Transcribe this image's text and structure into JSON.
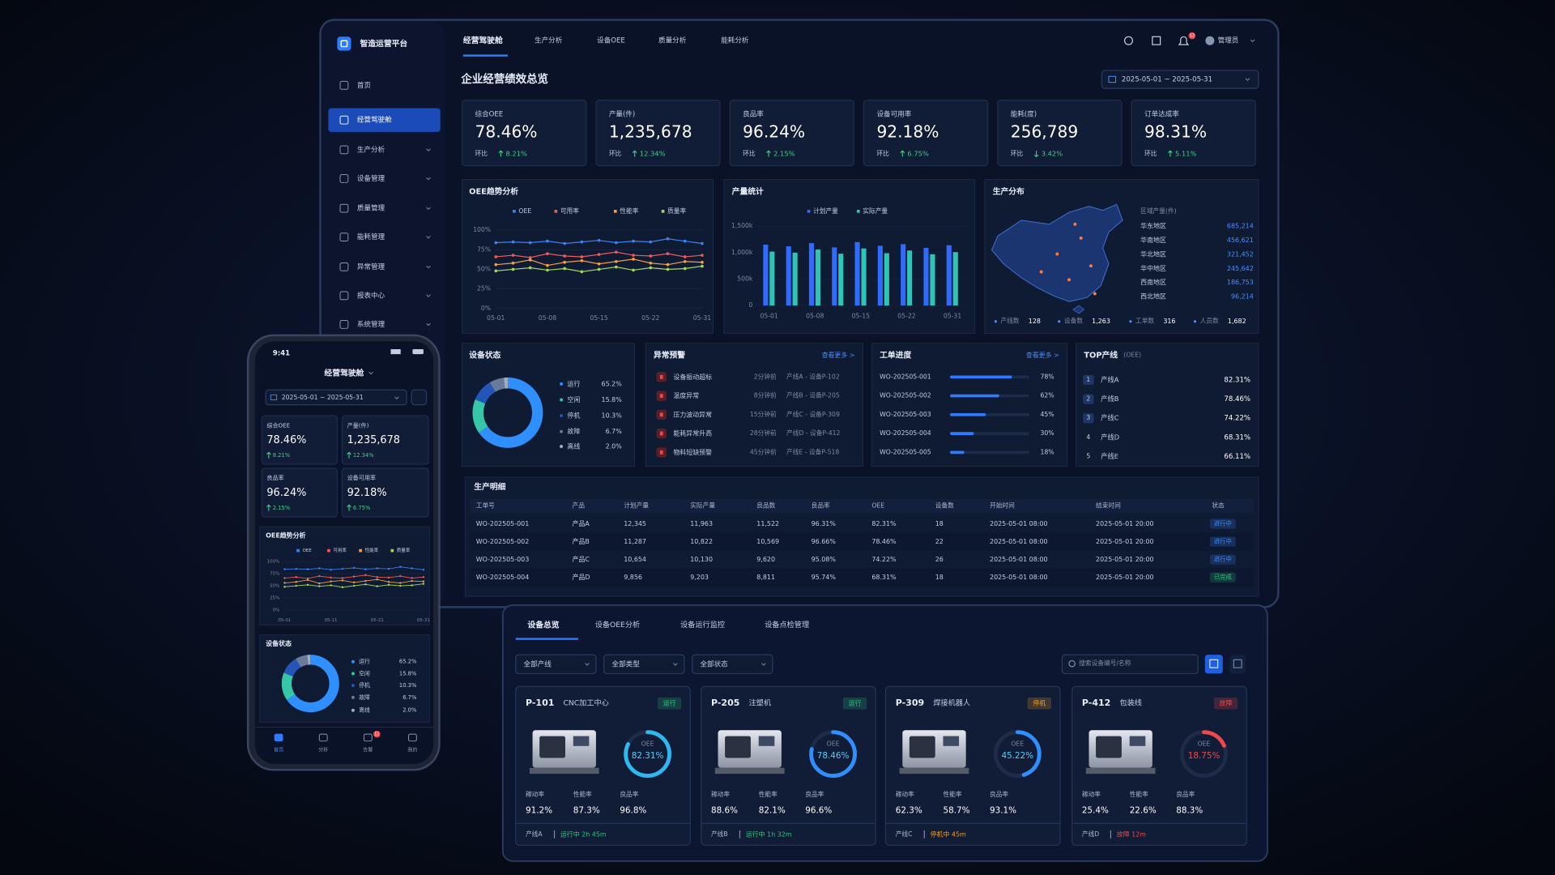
{
  "app": {
    "name": "智造运营平台",
    "tabs": [
      "经营驾驶舱",
      "生产分析",
      "设备OEE",
      "质量分析",
      "能耗分析"
    ],
    "active_tab": 0,
    "user": "管理员",
    "notice_count": "12"
  },
  "sidebar": {
    "items": [
      "首页",
      "经营驾驶舱",
      "生产分析",
      "设备管理",
      "质量管理",
      "能耗管理",
      "异常管理",
      "报表中心",
      "系统管理"
    ],
    "active": 1
  },
  "dashboard": {
    "title": "企业经营绩效总览",
    "date_range": "2025-05-01 ~ 2025-05-31",
    "change_label": "环比",
    "kpis": [
      {
        "label": "综合OEE",
        "value": "78.46%",
        "change": "8.21%",
        "trend": "up"
      },
      {
        "label": "产量(件)",
        "value": "1,235,678",
        "change": "12.34%",
        "trend": "up"
      },
      {
        "label": "良品率",
        "value": "96.24%",
        "change": "2.15%",
        "trend": "up"
      },
      {
        "label": "设备可用率",
        "value": "92.18%",
        "change": "6.75%",
        "trend": "up"
      },
      {
        "label": "能耗(度)",
        "value": "256,789",
        "change": "3.42%",
        "trend": "down"
      },
      {
        "label": "订单达成率",
        "value": "98.31%",
        "change": "5.11%",
        "trend": "up"
      }
    ],
    "oee_trend": {
      "type": "line",
      "title": "OEE趋势分析",
      "categories": [
        "05-01",
        null,
        null,
        "05-08",
        null,
        null,
        "05-15",
        null,
        null,
        "05-22",
        null,
        null,
        "05-31"
      ],
      "ylim": [
        0,
        100
      ],
      "yticks": [
        {
          "value": 0,
          "label": "0%"
        },
        {
          "value": 25,
          "label": "25%"
        },
        {
          "value": 50,
          "label": "50%"
        },
        {
          "value": 75,
          "label": "75%"
        },
        {
          "value": 100,
          "label": "100%"
        }
      ],
      "series": [
        {
          "name": "OEE",
          "color": "#3b82f6",
          "values": [
            84,
            85,
            84,
            86,
            83,
            85,
            87,
            84,
            86,
            85,
            89,
            86,
            83
          ]
        },
        {
          "name": "可用率",
          "color": "#ef5b5b",
          "values": [
            66,
            68,
            65,
            70,
            67,
            66,
            69,
            72,
            68,
            67,
            70,
            66,
            68
          ]
        },
        {
          "name": "性能率",
          "color": "#f59e42",
          "values": [
            56,
            58,
            62,
            55,
            59,
            61,
            57,
            60,
            63,
            58,
            56,
            60,
            59
          ]
        },
        {
          "name": "质量率",
          "color": "#a3d65c",
          "values": [
            48,
            50,
            52,
            49,
            51,
            47,
            50,
            53,
            49,
            52,
            50,
            51,
            54
          ]
        }
      ]
    },
    "output": {
      "type": "bar",
      "title": "产量统计",
      "categories": [
        "05-01",
        null,
        "05-08",
        null,
        "05-15",
        null,
        "05-22",
        null,
        "05-31"
      ],
      "ylim": [
        0,
        1600
      ],
      "yticks": [
        0,
        {
          "value": 500,
          "label": "500k"
        },
        {
          "value": 1000,
          "label": "1,000k"
        },
        {
          "value": 1500,
          "label": "1,500k"
        }
      ],
      "series": [
        {
          "name": "计划产量",
          "color": "#2f6bff",
          "values": [
            1150,
            1120,
            1180,
            1100,
            1200,
            1130,
            1160,
            1090,
            1140
          ]
        },
        {
          "name": "实际产量",
          "color": "#2ec4b6",
          "values": [
            1020,
            1000,
            1060,
            980,
            1080,
            990,
            1040,
            970,
            1010
          ]
        }
      ]
    },
    "distribution": {
      "title": "生产分布",
      "list_title": "区域产量(件)",
      "regions": [
        {
          "name": "华东地区",
          "value": "685,214"
        },
        {
          "name": "华南地区",
          "value": "456,621"
        },
        {
          "name": "华北地区",
          "value": "321,452"
        },
        {
          "name": "华中地区",
          "value": "245,642"
        },
        {
          "name": "西南地区",
          "value": "186,753"
        },
        {
          "name": "西北地区",
          "value": "96,214"
        }
      ],
      "stats": [
        {
          "label": "产线数",
          "value": "128"
        },
        {
          "label": "设备数",
          "value": "1,263"
        },
        {
          "label": "工单数",
          "value": "316"
        },
        {
          "label": "人员数",
          "value": "1,682"
        }
      ]
    },
    "device_status": {
      "type": "pie",
      "title": "设备状态",
      "categories": [
        "运行",
        "空闲",
        "停机",
        "故障",
        "离线"
      ],
      "values": [
        65.2,
        15.8,
        10.3,
        6.7,
        2.0
      ],
      "value_labels": [
        "65.2%",
        "15.8%",
        "10.3%",
        "6.7%",
        "2.0%"
      ],
      "colors": [
        "#2f8fff",
        "#36c6a8",
        "#2455b8",
        "#6b7a99",
        "#a0aec0"
      ]
    },
    "alarms": {
      "title": "异常预警",
      "more": "查看更多 >",
      "items": [
        {
          "name": "设备振动超标",
          "time": "2分钟前",
          "source": "产线A - 设备P-102"
        },
        {
          "name": "温度异常",
          "time": "8分钟前",
          "source": "产线B - 设备P-205"
        },
        {
          "name": "压力波动异常",
          "time": "15分钟前",
          "source": "产线C - 设备P-309"
        },
        {
          "name": "能耗异常升高",
          "time": "28分钟前",
          "source": "产线D - 设备P-412"
        },
        {
          "name": "物料短缺预警",
          "time": "45分钟前",
          "source": "产线E - 设备P-518"
        }
      ]
    },
    "work_orders": {
      "title": "工单进度",
      "more": "查看更多 >",
      "items": [
        {
          "id": "WO-202505-001",
          "progress": {
            "value": 78,
            "label": "78%"
          }
        },
        {
          "id": "WO-202505-002",
          "progress": {
            "value": 62,
            "label": "62%"
          }
        },
        {
          "id": "WO-202505-003",
          "progress": {
            "value": 45,
            "label": "45%"
          }
        },
        {
          "id": "WO-202505-004",
          "progress": {
            "value": 30,
            "label": "30%"
          }
        },
        {
          "id": "WO-202505-005",
          "progress": {
            "value": 18,
            "label": "18%"
          }
        }
      ]
    },
    "top_lines": {
      "title": "TOP产线",
      "subtitle": "(OEE)",
      "items": [
        {
          "rank": "1",
          "name": "产线A",
          "value": "82.31%"
        },
        {
          "rank": "2",
          "name": "产线B",
          "value": "78.46%"
        },
        {
          "rank": "3",
          "name": "产线C",
          "value": "74.22%"
        },
        {
          "rank": "4",
          "name": "产线D",
          "value": "68.31%"
        },
        {
          "rank": "5",
          "name": "产线E",
          "value": "66.11%"
        }
      ]
    },
    "detail": {
      "title": "生产明细",
      "columns": [
        "工单号",
        "产品",
        "计划产量",
        "实际产量",
        "良品数",
        "良品率",
        "OEE",
        "设备数",
        "开始时间",
        "结束时间",
        "状态"
      ],
      "rows": [
        [
          "WO-202505-001",
          "产品A",
          "12,345",
          "11,963",
          "11,522",
          "96.31%",
          "82.31%",
          "18",
          "2025-05-01 08:00",
          "2025-05-01 20:00",
          "进行中"
        ],
        [
          "WO-202505-002",
          "产品B",
          "11,287",
          "10,822",
          "10,569",
          "96.66%",
          "78.46%",
          "22",
          "2025-05-01 08:00",
          "2025-05-01 20:00",
          "进行中"
        ],
        [
          "WO-202505-003",
          "产品C",
          "10,654",
          "10,130",
          "9,620",
          "95.08%",
          "74.22%",
          "26",
          "2025-05-01 08:00",
          "2025-05-01 20:00",
          "进行中"
        ],
        [
          "WO-202505-004",
          "产品D",
          "9,856",
          "9,203",
          "8,811",
          "95.74%",
          "68.31%",
          "18",
          "2025-05-01 08:00",
          "2025-05-01 20:00",
          "已完成"
        ]
      ],
      "status_colors": [
        "#3d8bff",
        "#3d8bff",
        "#3d8bff",
        "#2ec27e"
      ]
    }
  },
  "mobile": {
    "time": "9:41",
    "trend_categories": [
      "05-01",
      null,
      null,
      null,
      "05-11",
      null,
      null,
      null,
      "05-21",
      null,
      null,
      null,
      "05-31"
    ],
    "nav": [
      "首页",
      "分析",
      "告警",
      "我的"
    ],
    "active_nav": 0
  },
  "equipment": {
    "tabs": [
      "设备总览",
      "设备OEE分析",
      "设备运行监控",
      "设备点检管理"
    ],
    "active_tab": 0,
    "filters": [
      "全部产线",
      "全部类型",
      "全部状态"
    ],
    "search": "搜索设备编号/名称",
    "oee_title": "OEE",
    "metric_labels": [
      "稼动率",
      "性能率",
      "良品率"
    ],
    "cards": [
      {
        "id": "P-101",
        "name": "CNC加工中心",
        "status": "运行",
        "status_color": "#2ec27e",
        "ring_color": "#2fb8f0",
        "oee": {
          "value": 82.31,
          "label": "82.31%"
        },
        "metrics": [
          "91.2%",
          "87.3%",
          "96.8%"
        ],
        "line": "产线A",
        "runtime": "运行中 2h 45m"
      },
      {
        "id": "P-205",
        "name": "注塑机",
        "status": "运行",
        "status_color": "#2ec27e",
        "ring_color": "#2f8fff",
        "oee": {
          "value": 78.46,
          "label": "78.46%"
        },
        "metrics": [
          "88.6%",
          "82.1%",
          "96.6%"
        ],
        "line": "产线B",
        "runtime": "运行中 1h 32m"
      },
      {
        "id": "P-309",
        "name": "焊接机器人",
        "status": "停机",
        "status_color": "#f0a020",
        "ring_color": "#2f8fff",
        "oee": {
          "value": 45.22,
          "label": "45.22%"
        },
        "metrics": [
          "62.3%",
          "58.7%",
          "93.1%"
        ],
        "line": "产线C",
        "runtime": "停机中 45m"
      },
      {
        "id": "P-412",
        "name": "包装线",
        "status": "故障",
        "status_color": "#f04848",
        "ring_color": "#f04848",
        "oee": {
          "value": 18.75,
          "label": "18.75%"
        },
        "metrics": [
          "25.4%",
          "22.6%",
          "88.3%"
        ],
        "line": "产线D",
        "runtime": "故障 12m"
      }
    ]
  }
}
